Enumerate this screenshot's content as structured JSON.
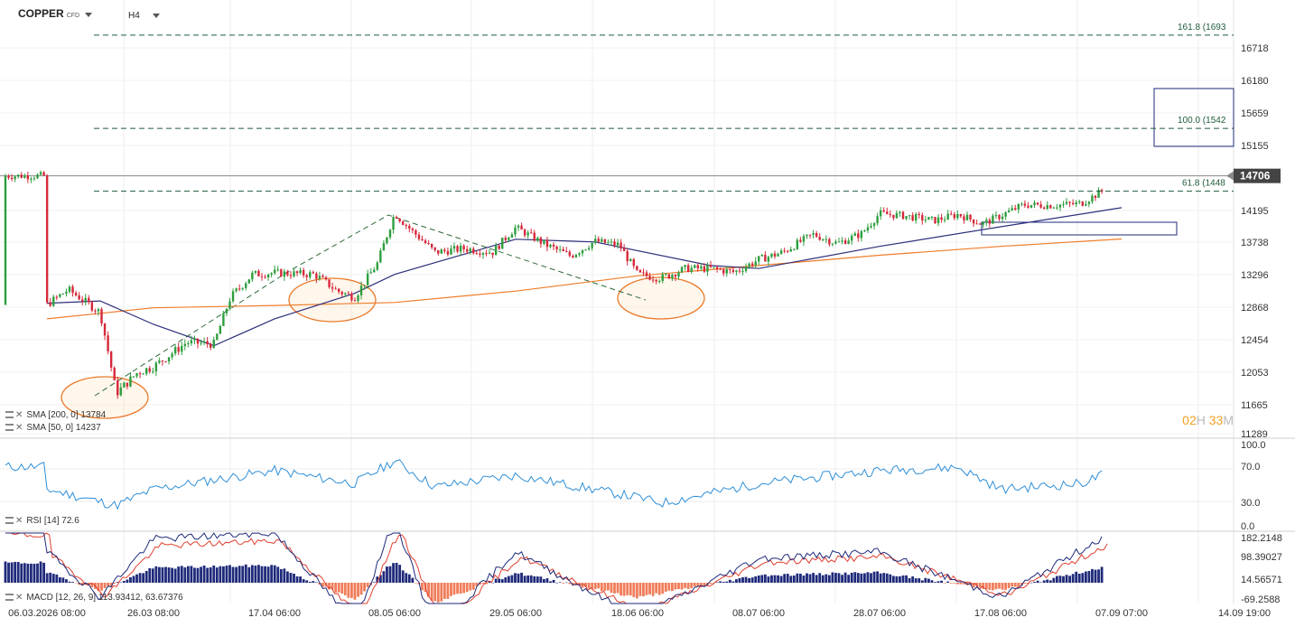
{
  "header": {
    "symbol": "COPPER",
    "symbol_tag": "CFD",
    "interval": "H4"
  },
  "price_axis": {
    "labels": [
      "16718",
      "16180",
      "15659",
      "15155",
      "14195",
      "13738",
      "13296",
      "12868",
      "12454",
      "12053",
      "11665",
      "11289"
    ],
    "current_price": "14706",
    "current_price_color": "#444444"
  },
  "fibonacci": [
    {
      "label": "161.8 (1693",
      "value": 16930
    },
    {
      "label": "100.0 (1542",
      "value": 15420
    },
    {
      "label": "61.8 (1448",
      "value": 14480
    }
  ],
  "legend": {
    "sma200": "SMA [200, 0] 13784",
    "sma50": "SMA [50, 0] 14237",
    "rsi": "RSI [14] 72.6",
    "macd": "MACD [12, 26, 9] 113.93412, 63.67376"
  },
  "timer": {
    "hours": "02",
    "h": "H",
    "minutes": "33",
    "m": "M"
  },
  "rsi_axis": [
    "100.0",
    "70.0",
    "30.0",
    "0.0"
  ],
  "macd_axis": [
    "182.2148",
    "98.39027",
    "14.56571",
    "-69.2588"
  ],
  "x_axis_labels": [
    "06.03.2026 08:00",
    "26.03 08:00",
    "17.04 06:00",
    "08.05 06:00",
    "29.05 06:00",
    "18.06 06:00",
    "08.07 06:00",
    "28.07 06:00",
    "17.08 06:00",
    "07.09 07:00",
    "14.09 19:00"
  ],
  "colors": {
    "up": "#2e9e3e",
    "down": "#d6283a",
    "sma50": "#2c2f7a",
    "sma200": "#f07d2a",
    "fib": "#1f5c3a",
    "rsi": "#2e8fd8",
    "macd_pos": "#1f2a7a",
    "macd_neg": "#f07d5a",
    "signal": "#e04030"
  },
  "chart_data": {
    "type": "candlestick",
    "title": "COPPER H4",
    "y_range": [
      11289,
      16930
    ],
    "close_path": [
      {
        "x": "06.03.2026 08:00",
        "y": 12900
      },
      {
        "x": "10.03",
        "y": 13100
      },
      {
        "x": "16.03",
        "y": 12800
      },
      {
        "x": "19.03",
        "y": 11800
      },
      {
        "x": "23.03",
        "y": 12050
      },
      {
        "x": "26.03 08:00",
        "y": 12120
      },
      {
        "x": "01.04",
        "y": 12420
      },
      {
        "x": "06.04",
        "y": 12400
      },
      {
        "x": "09.04",
        "y": 13000
      },
      {
        "x": "13.04",
        "y": 13300
      },
      {
        "x": "17.04 06:00",
        "y": 13320
      },
      {
        "x": "24.04",
        "y": 13300
      },
      {
        "x": "28.04",
        "y": 13080
      },
      {
        "x": "01.05",
        "y": 13000
      },
      {
        "x": "05.05",
        "y": 13450
      },
      {
        "x": "08.05 06:00",
        "y": 14150
      },
      {
        "x": "11.05",
        "y": 13900
      },
      {
        "x": "15.05",
        "y": 13600
      },
      {
        "x": "20.05",
        "y": 13650
      },
      {
        "x": "25.05",
        "y": 13600
      },
      {
        "x": "29.05 06:00",
        "y": 13950
      },
      {
        "x": "03.06",
        "y": 13700
      },
      {
        "x": "07.06",
        "y": 13550
      },
      {
        "x": "11.06",
        "y": 13750
      },
      {
        "x": "15.06",
        "y": 13700
      },
      {
        "x": "18.06 06:00",
        "y": 13300
      },
      {
        "x": "22.06",
        "y": 13250
      },
      {
        "x": "26.06",
        "y": 13380
      },
      {
        "x": "30.06",
        "y": 13380
      },
      {
        "x": "04.07",
        "y": 13330
      },
      {
        "x": "08.07 06:00",
        "y": 13500
      },
      {
        "x": "12.07",
        "y": 13600
      },
      {
        "x": "17.07",
        "y": 13850
      },
      {
        "x": "21.07",
        "y": 13720
      },
      {
        "x": "25.07",
        "y": 13860
      },
      {
        "x": "28.07 06:00",
        "y": 14150
      },
      {
        "x": "01.08",
        "y": 14120
      },
      {
        "x": "06.08",
        "y": 14050
      },
      {
        "x": "10.08",
        "y": 14140
      },
      {
        "x": "14.08",
        "y": 14000
      },
      {
        "x": "17.08 06:00",
        "y": 14120
      },
      {
        "x": "21.08",
        "y": 14280
      },
      {
        "x": "26.08",
        "y": 14270
      },
      {
        "x": "31.08",
        "y": 14300
      },
      {
        "x": "04.09",
        "y": 14500
      },
      {
        "x": "07.09 07:00",
        "y": 14706
      }
    ],
    "sma50_path": [
      {
        "x": "06.03.2026 08:00",
        "y": 12920
      },
      {
        "x": "16.03",
        "y": 12950
      },
      {
        "x": "26.03 08:00",
        "y": 12650
      },
      {
        "x": "06.04",
        "y": 12380
      },
      {
        "x": "17.04 06:00",
        "y": 12720
      },
      {
        "x": "01.05",
        "y": 13050
      },
      {
        "x": "08.05 06:00",
        "y": 13300
      },
      {
        "x": "29.05 06:00",
        "y": 13780
      },
      {
        "x": "11.06",
        "y": 13740
      },
      {
        "x": "30.06",
        "y": 13420
      },
      {
        "x": "08.07 06:00",
        "y": 13380
      },
      {
        "x": "28.07 06:00",
        "y": 13680
      },
      {
        "x": "17.08 06:00",
        "y": 13960
      },
      {
        "x": "07.09 07:00",
        "y": 14237
      }
    ],
    "sma200_path": [
      {
        "x": "06.03.2026 08:00",
        "y": 12720
      },
      {
        "x": "26.03 08:00",
        "y": 12860
      },
      {
        "x": "17.04 06:00",
        "y": 12890
      },
      {
        "x": "08.05 06:00",
        "y": 12930
      },
      {
        "x": "29.05 06:00",
        "y": 13080
      },
      {
        "x": "18.06 06:00",
        "y": 13280
      },
      {
        "x": "08.07 06:00",
        "y": 13420
      },
      {
        "x": "28.07 06:00",
        "y": 13560
      },
      {
        "x": "17.08 06:00",
        "y": 13680
      },
      {
        "x": "07.09 07:00",
        "y": 13784
      }
    ],
    "rsi_path": [
      {
        "x": "06.03.2026 08:00",
        "y": 45
      },
      {
        "x": "19.03",
        "y": 25
      },
      {
        "x": "26.03 08:00",
        "y": 45
      },
      {
        "x": "17.04 06:00",
        "y": 68
      },
      {
        "x": "01.05",
        "y": 52
      },
      {
        "x": "08.05 06:00",
        "y": 80
      },
      {
        "x": "15.05",
        "y": 48
      },
      {
        "x": "29.05 06:00",
        "y": 62
      },
      {
        "x": "18.06 06:00",
        "y": 35
      },
      {
        "x": "22.06",
        "y": 28
      },
      {
        "x": "08.07 06:00",
        "y": 52
      },
      {
        "x": "28.07 06:00",
        "y": 68
      },
      {
        "x": "10.08",
        "y": 72
      },
      {
        "x": "17.08 06:00",
        "y": 45
      },
      {
        "x": "31.08",
        "y": 52
      },
      {
        "x": "07.09 07:00",
        "y": 72.6
      }
    ],
    "macd_hist": [
      {
        "x": "06.03.2026 08:00",
        "y": 20
      },
      {
        "x": "16.03",
        "y": -15
      },
      {
        "x": "26.03 08:00",
        "y": 30
      },
      {
        "x": "17.04 06:00",
        "y": 35
      },
      {
        "x": "01.05",
        "y": -35
      },
      {
        "x": "08.05 06:00",
        "y": 45
      },
      {
        "x": "15.05",
        "y": -40
      },
      {
        "x": "29.05 06:00",
        "y": 20
      },
      {
        "x": "18.06 06:00",
        "y": -30
      },
      {
        "x": "08.07 06:00",
        "y": 15
      },
      {
        "x": "28.07 06:00",
        "y": 20
      },
      {
        "x": "17.08 06:00",
        "y": -15
      },
      {
        "x": "07.09 07:00",
        "y": 40
      }
    ]
  }
}
